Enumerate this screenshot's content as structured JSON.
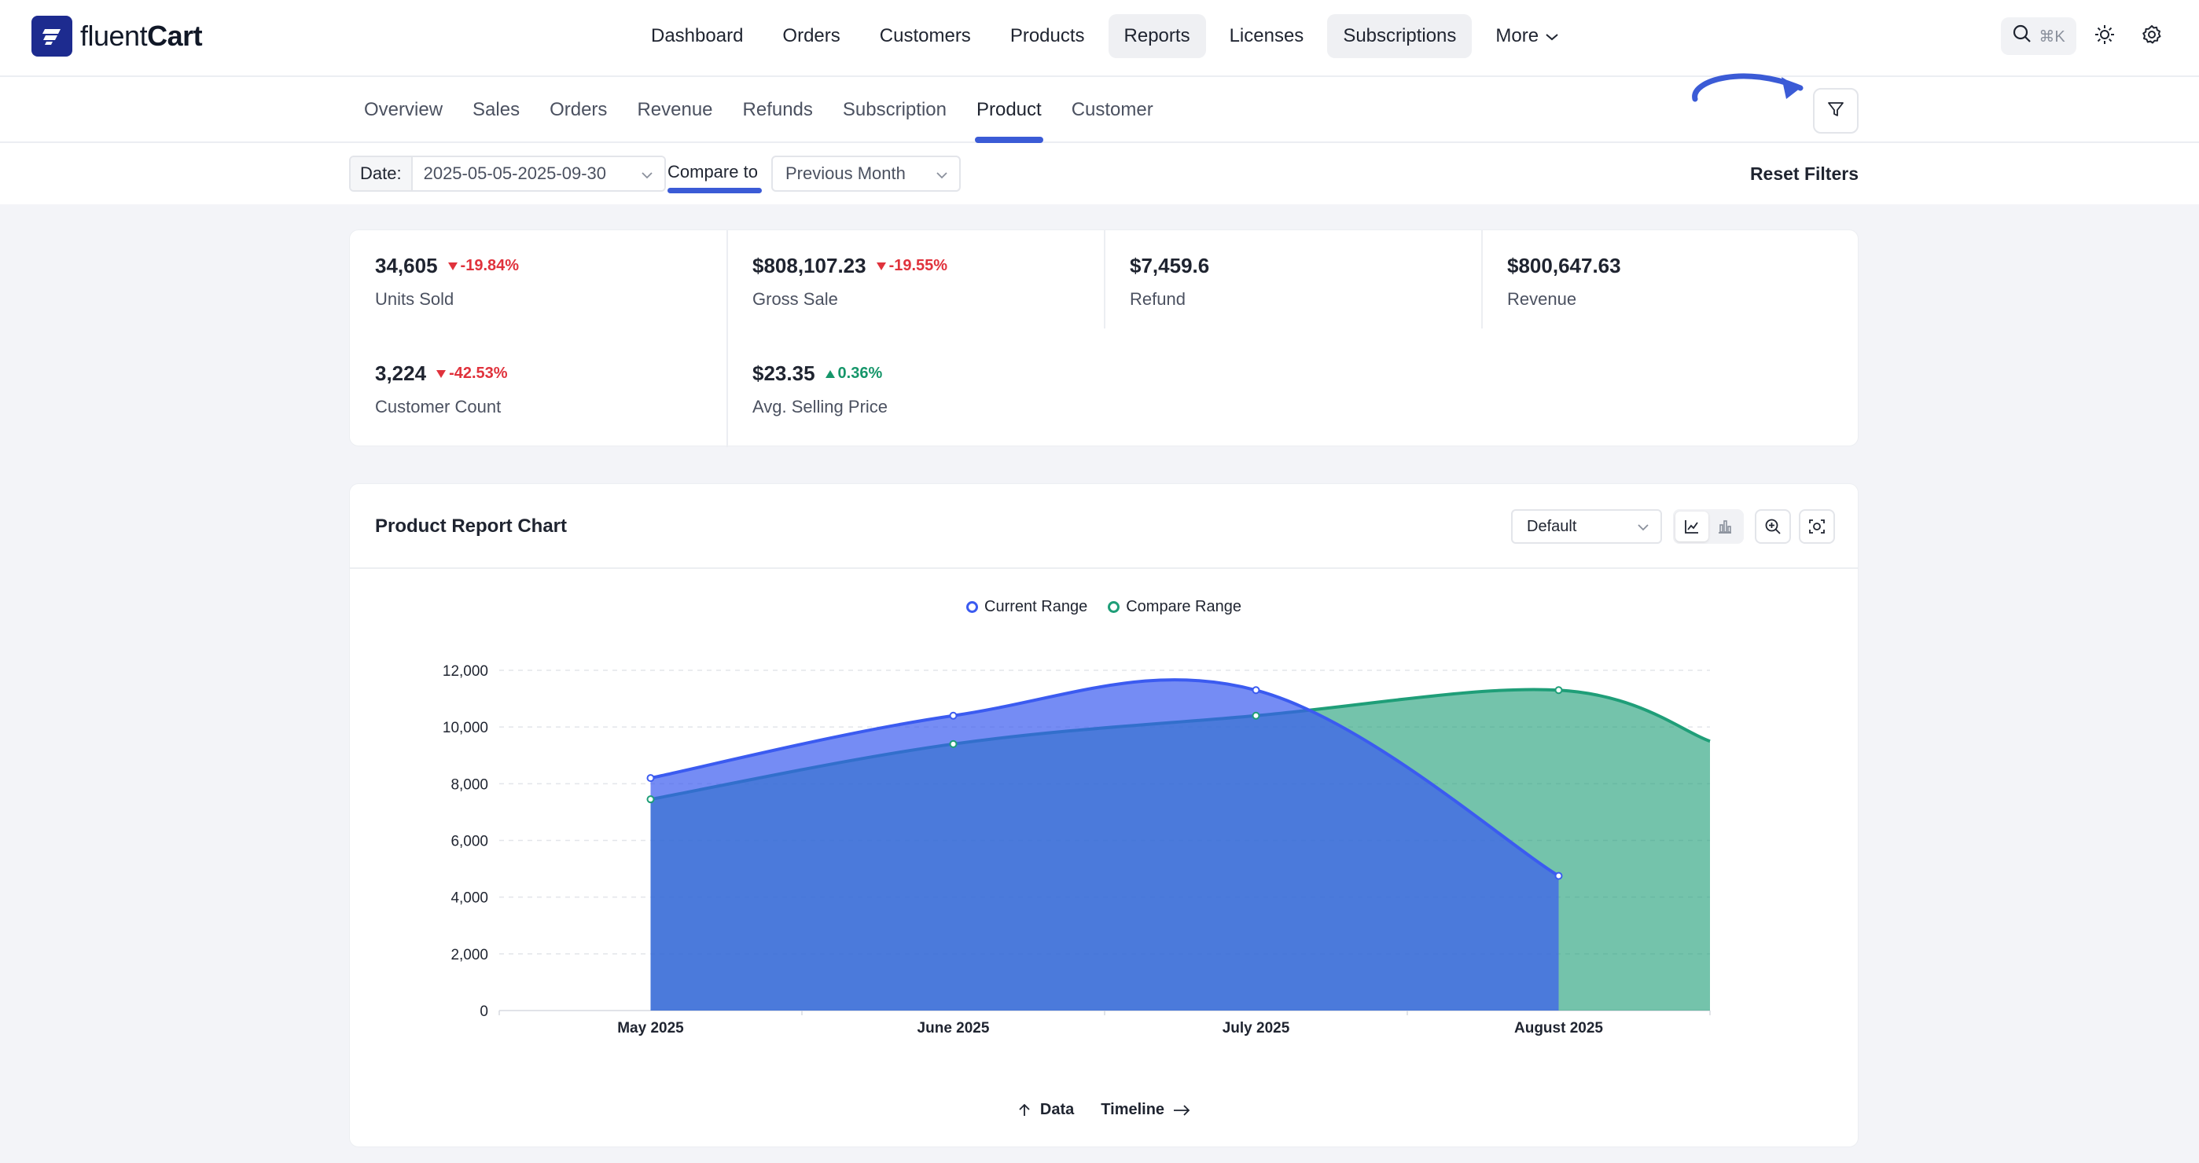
{
  "brand": {
    "name_light": "fluent",
    "name_bold": "Cart"
  },
  "main_nav": [
    {
      "label": "Dashboard",
      "active": false
    },
    {
      "label": "Orders",
      "active": false
    },
    {
      "label": "Customers",
      "active": false
    },
    {
      "label": "Products",
      "active": false
    },
    {
      "label": "Reports",
      "active": true
    },
    {
      "label": "Licenses",
      "active": false
    },
    {
      "label": "Subscriptions",
      "active": true
    },
    {
      "label": "More",
      "active": false
    }
  ],
  "search": {
    "shortcut": "⌘K",
    "icon": "search-icon"
  },
  "header_icons": [
    "sun-icon",
    "gear-icon"
  ],
  "sub_tabs": [
    {
      "label": "Overview"
    },
    {
      "label": "Sales"
    },
    {
      "label": "Orders"
    },
    {
      "label": "Revenue"
    },
    {
      "label": "Refunds"
    },
    {
      "label": "Subscription"
    },
    {
      "label": "Product",
      "active": true
    },
    {
      "label": "Customer"
    }
  ],
  "filters": {
    "date_label": "Date:",
    "date_start": "2025-05-05",
    "date_sep": "-",
    "date_end": "2025-09-30",
    "compare_label": "Compare to",
    "compare_value": "Previous Month",
    "reset_label": "Reset Filters"
  },
  "stats": [
    {
      "value": "34,605",
      "delta": "-19.84%",
      "trend": "down",
      "label": "Units Sold"
    },
    {
      "value": "$808,107.23",
      "delta": "-19.55%",
      "trend": "down",
      "label": "Gross Sale"
    },
    {
      "value": "$7,459.6",
      "delta": "",
      "trend": "none",
      "label": "Refund"
    },
    {
      "value": "$800,647.63",
      "delta": "",
      "trend": "none",
      "label": "Revenue"
    },
    {
      "value": "3,224",
      "delta": "-42.53%",
      "trend": "down",
      "label": "Customer Count"
    },
    {
      "value": "$23.35",
      "delta": "0.36%",
      "trend": "up",
      "label": "Avg. Selling Price"
    }
  ],
  "chart_card": {
    "title": "Product Report Chart",
    "view_select": "Default",
    "footer_data": "Data",
    "footer_timeline": "Timeline"
  },
  "colors": {
    "current": "#3b5bf0",
    "compare": "#1f9e78",
    "accent": "#3b5bd6",
    "down": "#e0323c",
    "up": "#16966a"
  },
  "chart_data": {
    "type": "area",
    "categories": [
      "May 2025",
      "June 2025",
      "July 2025",
      "August 2025"
    ],
    "series": [
      {
        "name": "Current Range",
        "values": [
          8200,
          10400,
          11300,
          4750
        ]
      },
      {
        "name": "Compare Range",
        "values": [
          7450,
          9400,
          10400,
          11300
        ],
        "continues_beyond_last": 9500
      }
    ],
    "yticks": [
      0,
      2000,
      4000,
      6000,
      8000,
      10000,
      12000
    ],
    "ytick_labels": [
      "0",
      "2,000",
      "4,000",
      "6,000",
      "8,000",
      "10,000",
      "12,000"
    ],
    "ylim": [
      0,
      12000
    ],
    "grid": true,
    "legend_position": "top-center"
  }
}
